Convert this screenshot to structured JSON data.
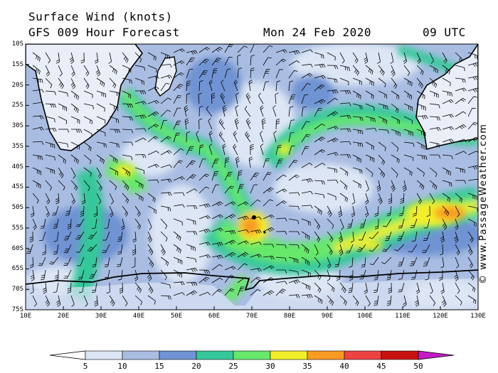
{
  "header": {
    "title": "Surface Wind (knots)",
    "forecast": "GFS 009 Hour Forecast",
    "date": "Mon 24 Feb 2020",
    "time": "09 UTC"
  },
  "credit": "© www.PassageWeather.com",
  "axes": {
    "lat_labels": [
      "10S",
      "15S",
      "20S",
      "25S",
      "30S",
      "35S",
      "40S",
      "45S",
      "50S",
      "55S",
      "60S",
      "65S",
      "70S",
      "75S"
    ],
    "lon_labels": [
      "10E",
      "20E",
      "30E",
      "40E",
      "50E",
      "60E",
      "70E",
      "80E",
      "90E",
      "100E",
      "110E",
      "120E",
      "130E"
    ]
  },
  "colorbar": {
    "labels": [
      "5",
      "10",
      "15",
      "20",
      "25",
      "30",
      "35",
      "40",
      "45",
      "50"
    ],
    "colors": [
      "#dde6f5",
      "#a9bde3",
      "#6f93d3",
      "#36c79a",
      "#67e86b",
      "#f2ee2a",
      "#fb9a22",
      "#ee4242",
      "#c81212",
      "#c41cc7"
    ]
  }
}
